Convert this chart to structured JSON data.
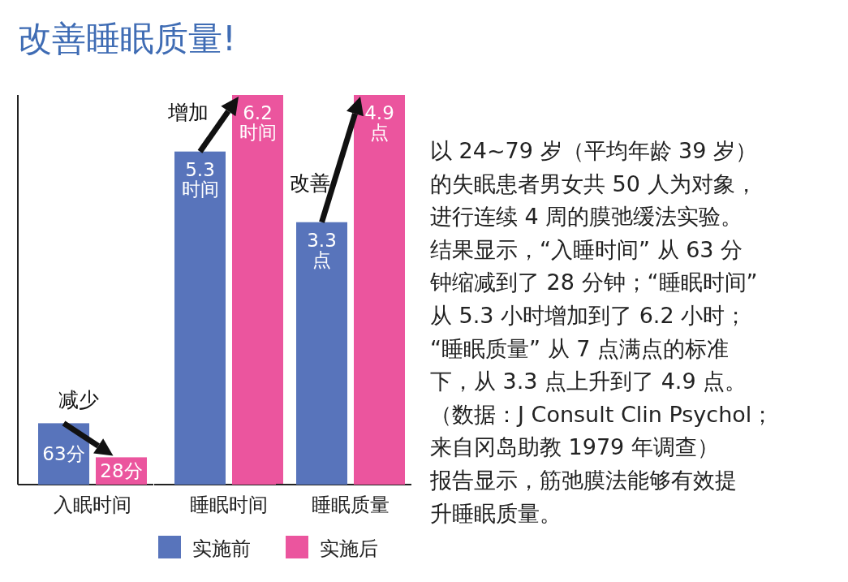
{
  "chart_data": [
    {
      "type": "bar",
      "title": "改善睡眠质量!",
      "categories": [
        "入眠时间"
      ],
      "ylim": [
        0,
        400
      ],
      "annotations": [
        "减少"
      ],
      "series": [
        {
          "color": "#5874bb",
          "values": [
            63
          ],
          "value_labels": [
            "63分"
          ]
        },
        {
          "color": "#eb559e",
          "values": [
            28
          ],
          "value_labels": [
            "28分"
          ]
        }
      ]
    },
    {
      "type": "bar",
      "categories": [
        "睡眠时间"
      ],
      "ylim": [
        0,
        6.2
      ],
      "annotations": [
        "增加"
      ],
      "legend": "bottom",
      "series": [
        {
          "name": "实施前",
          "color": "#5874bb",
          "values": [
            5.3
          ],
          "value_labels": [
            "5.3时间"
          ]
        },
        {
          "name": "实施后",
          "color": "#eb559e",
          "values": [
            6.2
          ],
          "value_labels": [
            "6.2时间"
          ]
        }
      ]
    },
    {
      "type": "bar",
      "categories": [
        "睡眠质量"
      ],
      "annotations": [
        "改善"
      ],
      "series": [
        {
          "color": "#5874bb",
          "values": [
            3.3
          ],
          "value_labels": [
            "3.3点"
          ]
        },
        {
          "color": "#eb559e",
          "values": [
            4.9
          ],
          "value_labels": [
            "4.9点"
          ]
        }
      ]
    },
    {
      "type": "other",
      "annotations": [
        "以 24~79 岁（平均年龄 39 岁）",
        "的失眠患者男女共 50 人为对象，",
        "进行连续 4 周的膜弛缓法实验。",
        "结果显示，“入睡时间” 从 63 分",
        "钟缩减到了 28 分钟；“睡眠时间”",
        "从 5.3 小时增加到了 6.2 小时；",
        "“睡眠质量” 从 7 点满点的标准",
        "下，从 3.3 点上升到了 4.9 点。",
        "（数据：J Consult Clin Psychol；",
        "来自冈岛助教 1979 年调查）",
        "报告显示，筋弛膜法能够有效提",
        "升睡眠质量。"
      ]
    }
  ]
}
